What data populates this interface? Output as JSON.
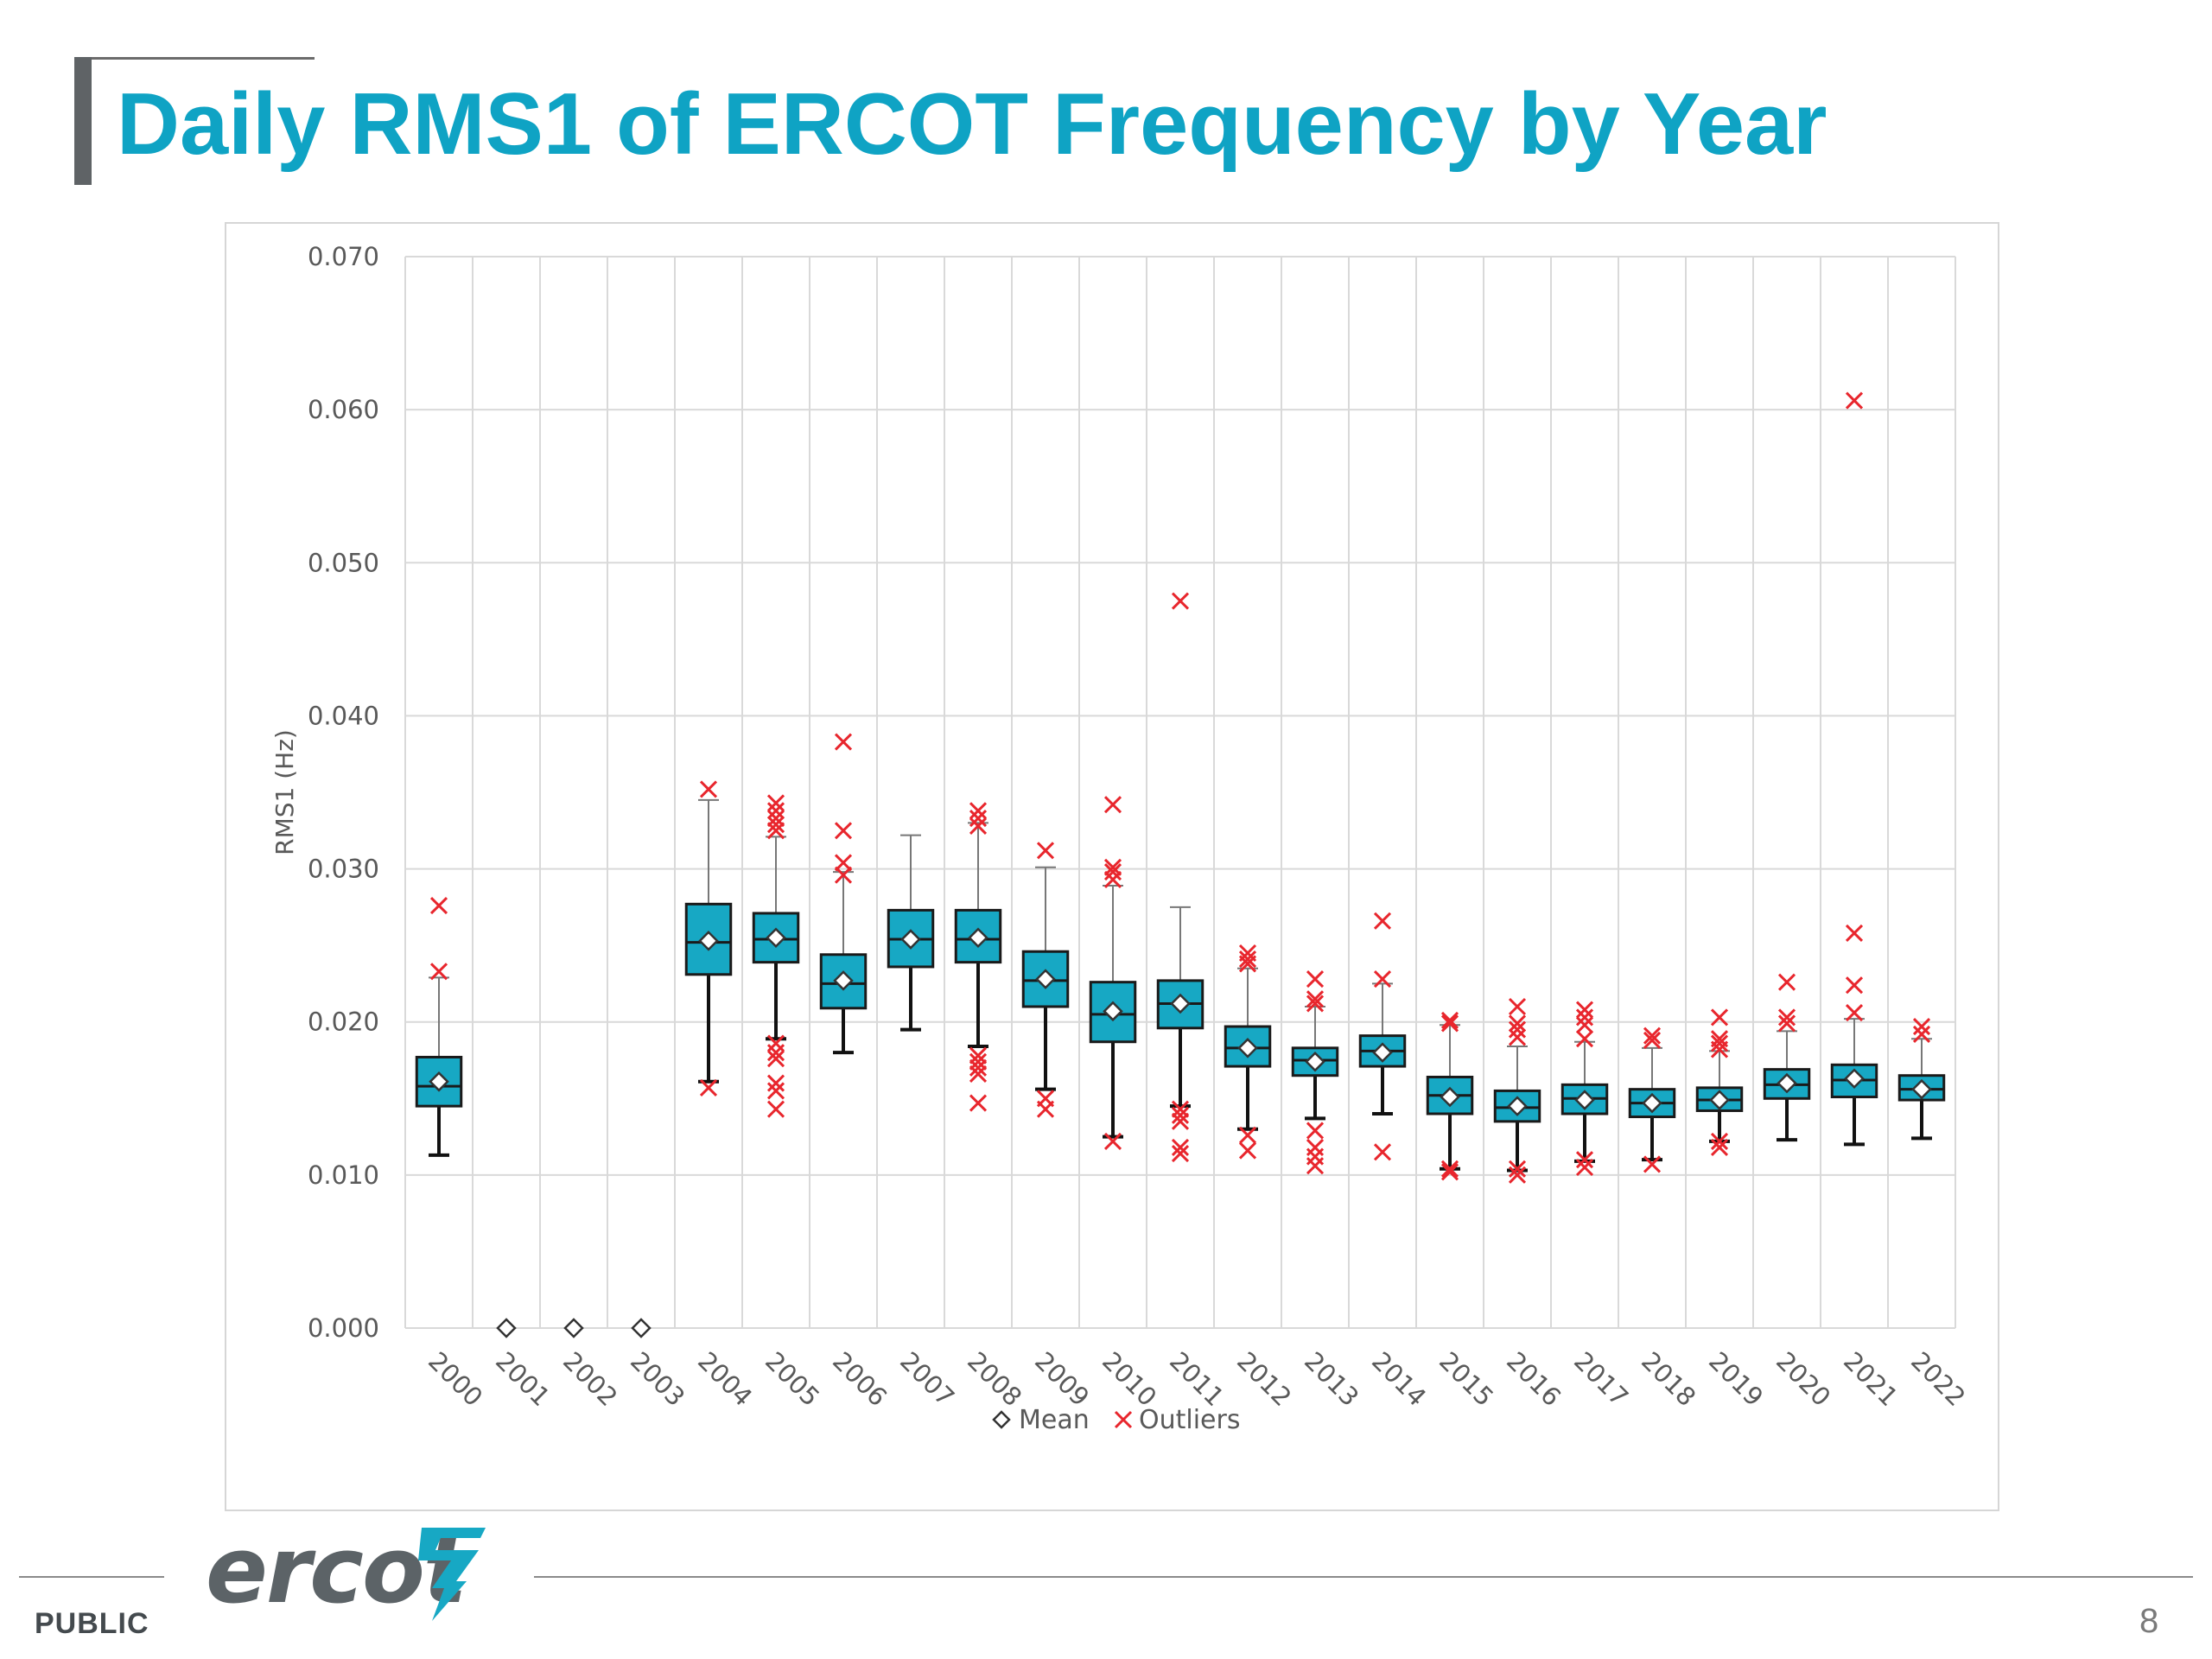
{
  "slide": {
    "title": "Daily RMS1 of ERCOT Frequency by Year",
    "footer_label": "PUBLIC",
    "page_number": "8",
    "logo_text": "ercot"
  },
  "colors": {
    "title": "#0fa3c4",
    "box_fill": "#17a8c4",
    "outlier": "#e8262d",
    "grid": "#d9d9d9",
    "axis_text": "#595959"
  },
  "chart_data": {
    "type": "box",
    "ylabel": "RMS1 (Hz)",
    "ylim": [
      0,
      0.07
    ],
    "yticks": [
      "0.000",
      "0.010",
      "0.020",
      "0.030",
      "0.040",
      "0.050",
      "0.060",
      "0.070"
    ],
    "grid": true,
    "legend": {
      "position": "bottom",
      "items": [
        {
          "symbol": "diamond",
          "label": "Mean"
        },
        {
          "symbol": "x",
          "label": "Outliers"
        }
      ]
    },
    "categories": [
      "2000",
      "2001",
      "2002",
      "2003",
      "2004",
      "2005",
      "2006",
      "2007",
      "2008",
      "2009",
      "2010",
      "2011",
      "2012",
      "2013",
      "2014",
      "2015",
      "2016",
      "2017",
      "2018",
      "2019",
      "2020",
      "2021",
      "2022"
    ],
    "boxes": [
      {
        "min": 0.0113,
        "q1": 0.0145,
        "median": 0.0158,
        "q3": 0.0177,
        "max": 0.0229,
        "mean": 0.0161
      },
      {
        "mean": 0.0
      },
      {
        "mean": 0.0
      },
      {
        "mean": 0.0
      },
      {
        "min": 0.0161,
        "q1": 0.0231,
        "median": 0.0252,
        "q3": 0.0277,
        "max": 0.0345,
        "mean": 0.0253
      },
      {
        "min": 0.0189,
        "q1": 0.0239,
        "median": 0.0254,
        "q3": 0.0271,
        "max": 0.0321,
        "mean": 0.0255
      },
      {
        "min": 0.018,
        "q1": 0.0209,
        "median": 0.0225,
        "q3": 0.0244,
        "max": 0.0298,
        "mean": 0.0227
      },
      {
        "min": 0.0195,
        "q1": 0.0236,
        "median": 0.0254,
        "q3": 0.0273,
        "max": 0.0322,
        "mean": 0.0254
      },
      {
        "min": 0.0184,
        "q1": 0.0239,
        "median": 0.0254,
        "q3": 0.0273,
        "max": 0.033,
        "mean": 0.0255
      },
      {
        "min": 0.0156,
        "q1": 0.021,
        "median": 0.0227,
        "q3": 0.0246,
        "max": 0.0301,
        "mean": 0.0228
      },
      {
        "min": 0.0125,
        "q1": 0.0187,
        "median": 0.0205,
        "q3": 0.0226,
        "max": 0.0289,
        "mean": 0.0207
      },
      {
        "min": 0.0145,
        "q1": 0.0196,
        "median": 0.0212,
        "q3": 0.0227,
        "max": 0.0275,
        "mean": 0.0212
      },
      {
        "min": 0.013,
        "q1": 0.0171,
        "median": 0.0183,
        "q3": 0.0197,
        "max": 0.0235,
        "mean": 0.0183
      },
      {
        "min": 0.0137,
        "q1": 0.0165,
        "median": 0.0175,
        "q3": 0.0183,
        "max": 0.021,
        "mean": 0.0174
      },
      {
        "min": 0.014,
        "q1": 0.0171,
        "median": 0.0181,
        "q3": 0.0191,
        "max": 0.0225,
        "mean": 0.018
      },
      {
        "min": 0.0104,
        "q1": 0.014,
        "median": 0.0152,
        "q3": 0.0164,
        "max": 0.0198,
        "mean": 0.0151
      },
      {
        "min": 0.0103,
        "q1": 0.0135,
        "median": 0.0144,
        "q3": 0.0155,
        "max": 0.0184,
        "mean": 0.0145
      },
      {
        "min": 0.0109,
        "q1": 0.014,
        "median": 0.015,
        "q3": 0.0159,
        "max": 0.0187,
        "mean": 0.0149
      },
      {
        "min": 0.011,
        "q1": 0.0138,
        "median": 0.0147,
        "q3": 0.0156,
        "max": 0.0183,
        "mean": 0.0147
      },
      {
        "min": 0.0122,
        "q1": 0.0142,
        "median": 0.0149,
        "q3": 0.0157,
        "max": 0.0181,
        "mean": 0.0149
      },
      {
        "min": 0.0123,
        "q1": 0.015,
        "median": 0.0159,
        "q3": 0.0169,
        "max": 0.0194,
        "mean": 0.016
      },
      {
        "min": 0.012,
        "q1": 0.0151,
        "median": 0.0162,
        "q3": 0.0172,
        "max": 0.0202,
        "mean": 0.0163
      },
      {
        "min": 0.0124,
        "q1": 0.0149,
        "median": 0.0156,
        "q3": 0.0165,
        "max": 0.0189,
        "mean": 0.0156
      }
    ],
    "outliers": [
      [
        0.0276,
        0.0233
      ],
      [],
      [],
      [],
      [
        0.0352,
        0.0157
      ],
      [
        0.0343,
        0.0338,
        0.0333,
        0.0329,
        0.0325,
        0.0186,
        0.018,
        0.0176,
        0.016,
        0.0155,
        0.0143
      ],
      [
        0.0383,
        0.0325,
        0.0304,
        0.0296
      ],
      [],
      [
        0.0338,
        0.0333,
        0.0328,
        0.0178,
        0.0174,
        0.017,
        0.0166,
        0.0147
      ],
      [
        0.0312,
        0.015,
        0.0143
      ],
      [
        0.0342,
        0.0301,
        0.0298,
        0.0293,
        0.0122
      ],
      [
        0.0475,
        0.0143,
        0.0139,
        0.0135,
        0.0118,
        0.0114
      ],
      [
        0.0245,
        0.0241,
        0.0238,
        0.0126,
        0.0116
      ],
      [
        0.0228,
        0.0215,
        0.0212,
        0.0129,
        0.0118,
        0.0112,
        0.0106
      ],
      [
        0.0266,
        0.0228,
        0.0115
      ],
      [
        0.0201,
        0.0199,
        0.0104,
        0.0102
      ],
      [
        0.021,
        0.0199,
        0.0195,
        0.019,
        0.0104,
        0.01
      ],
      [
        0.0208,
        0.0203,
        0.0198,
        0.0189,
        0.011,
        0.0105
      ],
      [
        0.0191,
        0.0188,
        0.0107
      ],
      [
        0.0203,
        0.0189,
        0.0186,
        0.0182,
        0.0122,
        0.0118
      ],
      [
        0.0226,
        0.0203,
        0.0199
      ],
      [
        0.0606,
        0.0258,
        0.0224,
        0.0206
      ],
      [
        0.0197,
        0.0192
      ]
    ]
  }
}
